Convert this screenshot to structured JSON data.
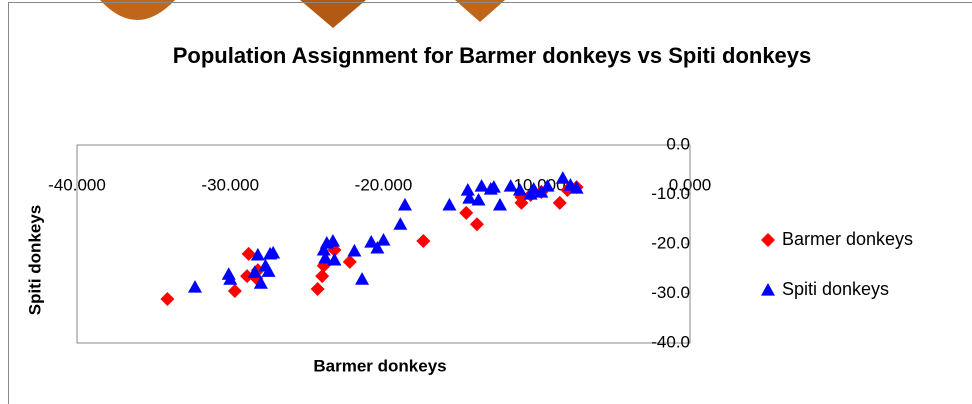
{
  "chart_data": {
    "type": "scatter",
    "title": "Population Assignment for Barmer donkeys vs Spiti donkeys",
    "x_label": "Barmer donkeys",
    "y_label": "Spiti donkeys",
    "xlim": [
      -40,
      0
    ],
    "ylim": [
      -40,
      0
    ],
    "xticks": [
      {
        "value": -40,
        "label": "-40.000"
      },
      {
        "value": -30,
        "label": "-30.000"
      },
      {
        "value": -20,
        "label": "-20.000"
      },
      {
        "value": -10,
        "label": "-10.000"
      },
      {
        "value": 0,
        "label": "0.000"
      }
    ],
    "yticks": [
      {
        "value": 0,
        "label": "0.0"
      },
      {
        "value": -10,
        "label": "-10.0"
      },
      {
        "value": -20,
        "label": "-20.0"
      },
      {
        "value": -30,
        "label": "-30.0"
      },
      {
        "value": -40,
        "label": "-40.0"
      }
    ],
    "legend": "right",
    "series": [
      {
        "name": "Barmer donkeys",
        "color": "#ff0000",
        "marker": "diamond",
        "x": [
          -34.1,
          -29.7,
          -28.8,
          -28.9,
          -28.3,
          -28.2,
          -24.3,
          -24.0,
          -23.9,
          -23.2,
          -22.2,
          -17.4,
          -14.6,
          -13.9,
          -11.0,
          -11.0,
          -9.7,
          -8.5,
          -7.4,
          -8.0,
          -10.4
        ],
        "values": [
          -31.1,
          -29.5,
          -22.0,
          -26.5,
          -26.9,
          -25.3,
          -29.1,
          -26.5,
          -24.4,
          -21.2,
          -23.6,
          -19.4,
          -13.7,
          -16.0,
          -10.5,
          -11.7,
          -9.5,
          -11.7,
          -8.5,
          -9.1,
          -10.1
        ]
      },
      {
        "name": "Spiti donkeys",
        "color": "#0000ff",
        "marker": "triangle",
        "x": [
          -32.3,
          -30.1,
          -30.0,
          -28.4,
          -28.2,
          -28.0,
          -27.4,
          -27.7,
          -27.5,
          -27.2,
          -23.9,
          -23.7,
          -23.3,
          -23.2,
          -23.8,
          -21.9,
          -21.4,
          -20.8,
          -20.4,
          -20.0,
          -18.9,
          -18.6,
          -15.7,
          -14.5,
          -14.4,
          -13.8,
          -13.6,
          -13.0,
          -12.8,
          -12.4,
          -11.7,
          -11.1,
          -10.4,
          -10.2,
          -9.7,
          -9.3,
          -8.3,
          -7.8,
          -7.4
        ],
        "values": [
          -28.7,
          -26.1,
          -27.1,
          -25.7,
          -22.2,
          -27.9,
          -22.0,
          -24.4,
          -25.5,
          -21.8,
          -21.2,
          -19.8,
          -19.4,
          -23.2,
          -22.8,
          -21.4,
          -27.1,
          -19.6,
          -20.8,
          -19.2,
          -16.0,
          -12.1,
          -12.1,
          -9.1,
          -10.7,
          -11.1,
          -8.3,
          -8.9,
          -8.5,
          -12.1,
          -8.3,
          -9.1,
          -9.9,
          -8.9,
          -9.5,
          -8.3,
          -6.7,
          -8.1,
          -8.7
        ]
      }
    ]
  }
}
